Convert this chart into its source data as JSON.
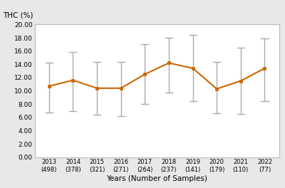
{
  "x": [
    2013,
    2014,
    2015,
    2016,
    2017,
    2018,
    2019,
    2020,
    2021,
    2022
  ],
  "means": [
    10.7,
    11.6,
    10.4,
    10.4,
    12.5,
    14.2,
    13.4,
    10.3,
    11.5,
    13.4
  ],
  "upper_errors": [
    3.5,
    4.3,
    4.0,
    4.0,
    4.5,
    3.8,
    5.0,
    4.0,
    5.0,
    4.5
  ],
  "lower_errors": [
    4.0,
    4.7,
    4.0,
    4.2,
    4.5,
    4.5,
    5.0,
    3.7,
    5.0,
    5.0
  ],
  "samples": [
    "(498)",
    "(378)",
    "(321)",
    "(271)",
    "(264)",
    "(237)",
    "(141)",
    "(179)",
    "(110)",
    "(77)"
  ],
  "line_color": "#CC6600",
  "marker_color": "#CC6600",
  "error_color": "#AAAAAA",
  "ylabel": "THC (%)",
  "xlabel": "Years (Number of Samples)",
  "ylim": [
    0.0,
    20.0
  ],
  "yticks": [
    0.0,
    2.0,
    4.0,
    6.0,
    8.0,
    10.0,
    12.0,
    14.0,
    16.0,
    18.0,
    20.0
  ],
  "fig_bg_color": "#e8e8e8",
  "plot_bg_color": "#ffffff",
  "spine_color": "#bbbbbb"
}
